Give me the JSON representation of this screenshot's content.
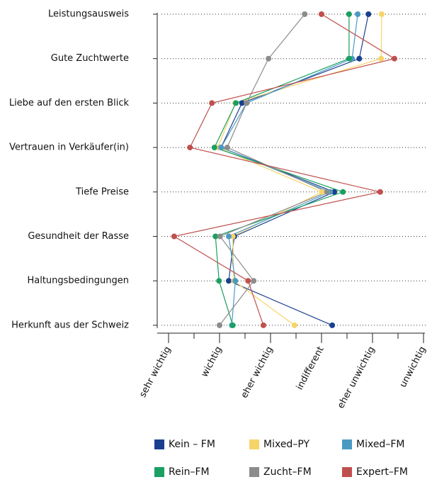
{
  "chart_data": {
    "type": "line",
    "categories": [
      "Leistungsausweis",
      "Gute Zuchtwerte",
      "Liebe auf den ersten Blick",
      "Vertrauen in Verkäufer(in)",
      "Tiefe Preise",
      "Gesundheit der Rasse",
      "Haltungsbedingungen",
      "Herkunft aus der Schweiz"
    ],
    "xlim": [
      1,
      6
    ],
    "xticks": [
      {
        "value": 1,
        "label": "sehr wichtig"
      },
      {
        "value": 2,
        "label": "wichtig"
      },
      {
        "value": 3,
        "label": "eher wichtig"
      },
      {
        "value": 4,
        "label": "indifferent"
      },
      {
        "value": 5,
        "label": "eher unwichtig"
      },
      {
        "value": 6,
        "label": "unwichtig"
      }
    ],
    "xminorticks": [
      1.5,
      2.5,
      3.5,
      4.5,
      5.5
    ],
    "series": [
      {
        "name": "Kein – FM",
        "color": "#1a3f8f",
        "values": [
          4.92,
          4.74,
          2.44,
          2.03,
          4.25,
          2.29,
          2.18,
          4.21
        ]
      },
      {
        "name": "Mixed–PY",
        "color": "#f7d46a",
        "values": [
          5.18,
          5.17,
          2.31,
          1.97,
          4.01,
          2.26,
          2.28,
          3.47
        ]
      },
      {
        "name": "Mixed–FM",
        "color": "#4a9bc4",
        "values": [
          4.71,
          4.6,
          2.53,
          2.03,
          4.17,
          2.18,
          2.31,
          2.24
        ]
      },
      {
        "name": "Rein–FM",
        "color": "#1aa060",
        "values": [
          4.54,
          4.54,
          2.32,
          1.9,
          4.42,
          1.92,
          1.99,
          2.26
        ]
      },
      {
        "name": "Zucht–FM",
        "color": "#8c8c8c",
        "values": [
          3.67,
          2.96,
          2.53,
          2.15,
          4.11,
          2.01,
          2.67,
          2.0
        ]
      },
      {
        "name": "Expert–FM",
        "color": "#c0504d",
        "values": [
          4.0,
          5.43,
          1.85,
          1.42,
          5.15,
          1.11,
          2.56,
          2.86
        ]
      }
    ]
  }
}
